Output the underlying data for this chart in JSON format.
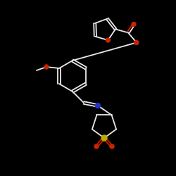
{
  "bg_color": "#000000",
  "bond_color": "#e8e8e8",
  "oxygen_color": "#cc2200",
  "nitrogen_color": "#2233cc",
  "sulfur_color": "#bbaa00",
  "fig_width": 2.5,
  "fig_height": 2.5,
  "dpi": 100,
  "lw": 1.3
}
